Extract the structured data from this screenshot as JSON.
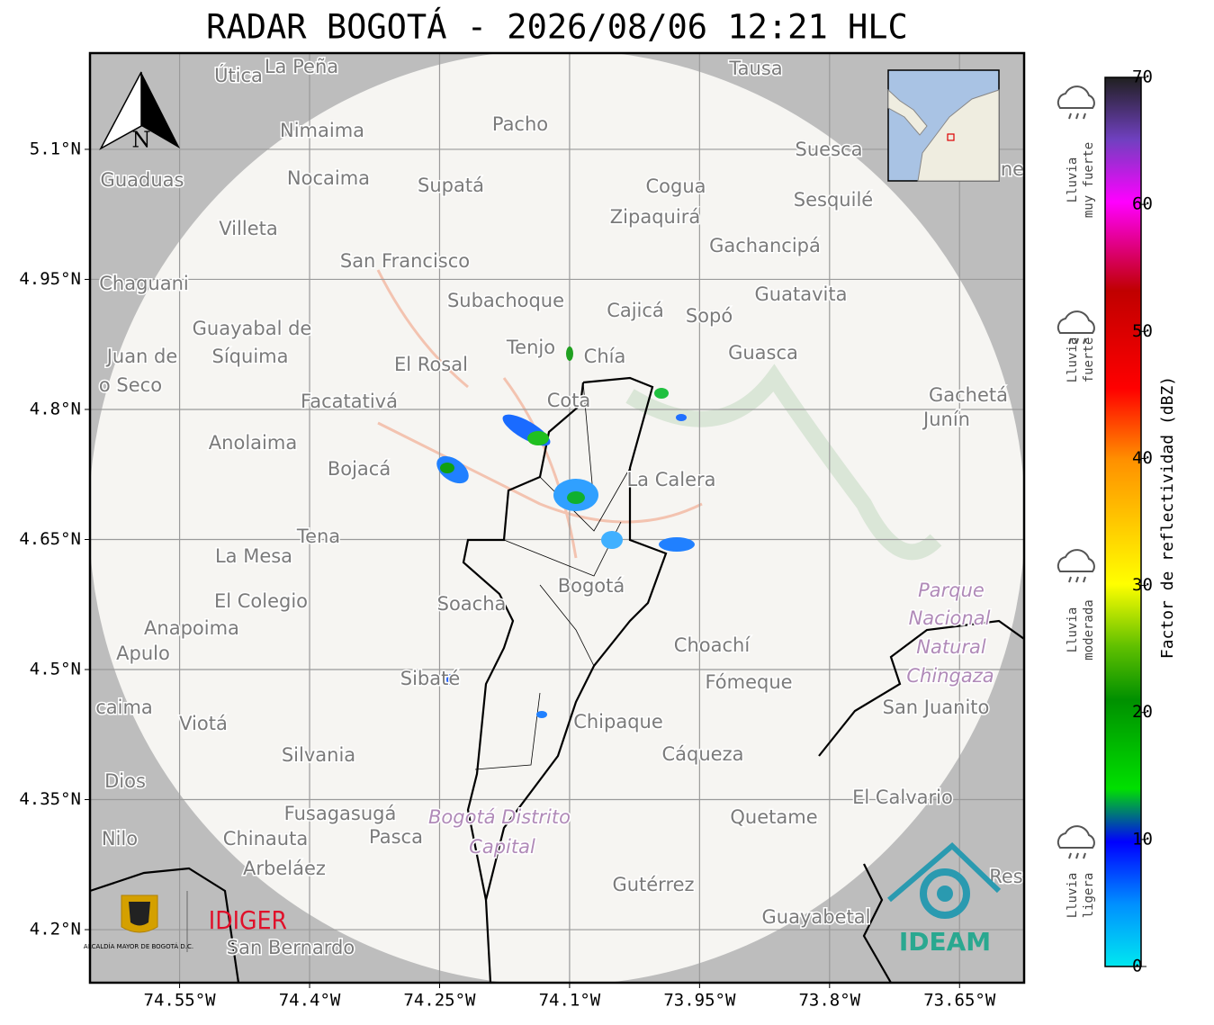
{
  "title": "RADAR BOGOTÁ - 2026/08/06 12:21 HLC",
  "map": {
    "xlim": [
      -74.6534,
      -73.5755
    ],
    "ylim": [
      4.1388,
      5.211
    ],
    "xticks": [
      {
        "value": -74.55,
        "label": "74.55°W"
      },
      {
        "value": -74.4,
        "label": "74.4°W"
      },
      {
        "value": -74.25,
        "label": "74.25°W"
      },
      {
        "value": -74.1,
        "label": "74.1°W"
      },
      {
        "value": -73.95,
        "label": "73.95°W"
      },
      {
        "value": -73.8,
        "label": "73.8°W"
      },
      {
        "value": -73.65,
        "label": "73.65°W"
      }
    ],
    "yticks": [
      {
        "value": 5.1,
        "label": "5.1°N"
      },
      {
        "value": 4.95,
        "label": "4.95°N"
      },
      {
        "value": 4.8,
        "label": "4.8°N"
      },
      {
        "value": 4.65,
        "label": "4.65°N"
      },
      {
        "value": 4.5,
        "label": "4.5°N"
      },
      {
        "value": 4.35,
        "label": "4.35°N"
      },
      {
        "value": 4.2,
        "label": "4.2°N"
      }
    ],
    "north": "N",
    "places": [
      "Útica",
      "La Peña",
      "Tausa",
      "Pacho",
      "Nimaima",
      "Guaduas",
      "Nocaima",
      "Supatá",
      "Cogua",
      "Suesca",
      "Sesquilé",
      "Zipaquirá",
      "Villeta",
      "Gachancipá",
      "San Francisco",
      "Chaguani",
      "Guatavita",
      "Subachoque",
      "Cajicá",
      "Sopó",
      "Guayabal de",
      "Síquima",
      "Juan de",
      "o Seco",
      "Tenjo",
      "Chía",
      "El Rosal",
      "Guasca",
      "Facatativá",
      "Cota",
      "Gachetá",
      "Junín",
      "Anolaima",
      "Bojacá",
      "La Calera",
      "Tena",
      "La Mesa",
      "Bogotá",
      "El Colegio",
      "Soacha",
      "Anapoima",
      "Apulo",
      "Choachí",
      "Sibaté",
      "Fómeque",
      "San Juanito",
      "caima",
      "Viotá",
      "Chipaque",
      "Silvania",
      "Cáqueza",
      "Dios",
      "El Calvario",
      "Fusagasugá",
      "Quetame",
      "Nilo",
      "Chinauta",
      "Pasca",
      "Arbeláez",
      "Gutérrez",
      "Guayabetal",
      "Res",
      "San Bernardo",
      "ne"
    ],
    "park_labels": [
      "Parque",
      "Nacional",
      "Natural",
      "Chingaza",
      "Bogotá Distrito",
      "Capital"
    ],
    "logos": {
      "alcaldia": "ALCALDÍA MAYOR DE BOGOTÁ D.C.",
      "idiger": "IDIGER",
      "ideam": "IDEAM"
    }
  },
  "colorbar": {
    "label": "Factor de reflectividad (dBZ)",
    "lim": [
      0,
      70
    ],
    "ticks": [
      0,
      10,
      20,
      30,
      40,
      50,
      60,
      70
    ],
    "categories": [
      [
        "Lluvia",
        "muy fuerte"
      ],
      [
        "Lluvia",
        "fuerte"
      ],
      [
        "Lluvia",
        "moderada"
      ],
      [
        "Lluvia",
        "ligera"
      ]
    ]
  }
}
